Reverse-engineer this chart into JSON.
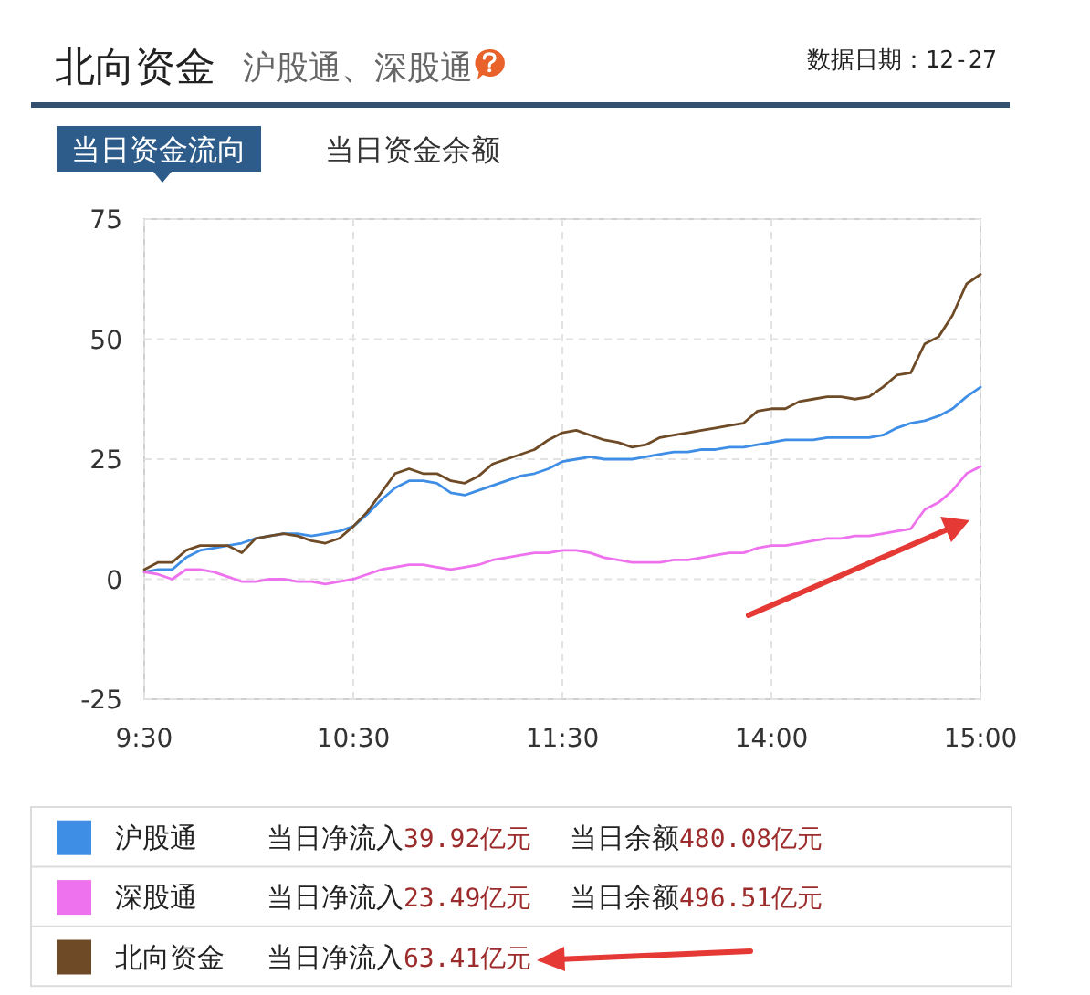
{
  "chart_data": {
    "type": "line",
    "title": "北向资金",
    "subtitle": "沪股通、深股通",
    "annotations": [
      "数据日期：12-27",
      "当日资金流向",
      "当日资金余额",
      "当日净流入39.92亿元",
      "当日余额480.08亿元",
      "当日净流入23.49亿元",
      "当日余额496.51亿元",
      "当日净流入63.41亿元"
    ],
    "categories": [
      "9:30",
      null,
      null,
      null,
      null,
      null,
      null,
      null,
      null,
      null,
      null,
      null,
      null,
      null,
      null,
      "10:30",
      null,
      null,
      null,
      null,
      null,
      null,
      null,
      null,
      null,
      null,
      null,
      null,
      null,
      null,
      "11:30",
      null,
      null,
      null,
      null,
      null,
      null,
      null,
      null,
      null,
      null,
      null,
      null,
      null,
      null,
      "14:00",
      null,
      null,
      null,
      null,
      null,
      null,
      null,
      null,
      null,
      null,
      null,
      null,
      null,
      null,
      "15:00"
    ],
    "ylim": [
      -25,
      75
    ],
    "yticks": [
      -25,
      0,
      25,
      50,
      75
    ],
    "grid": true,
    "legend": "bottom",
    "series": [
      {
        "name": "沪股通",
        "color": "#3f8ee6",
        "values": [
          1.5,
          2,
          2,
          4.5,
          6,
          6.5,
          7,
          7.5,
          8.5,
          9,
          9.5,
          9.5,
          9,
          9.5,
          10,
          11,
          13.5,
          16.5,
          19,
          20.5,
          20.5,
          20,
          18,
          17.5,
          18.5,
          19.5,
          20.5,
          21.5,
          22,
          23,
          24.5,
          25,
          25.5,
          25,
          25,
          25,
          25.5,
          26,
          26.5,
          26.5,
          27,
          27,
          27.5,
          27.5,
          28,
          28.5,
          29,
          29,
          29,
          29.5,
          29.5,
          29.5,
          29.5,
          30,
          31.5,
          32.5,
          33,
          34,
          35.5,
          38,
          40
        ]
      },
      {
        "name": "深股通",
        "color": "#ee72ee",
        "values": [
          1.5,
          1,
          0,
          2,
          2,
          1.5,
          0.5,
          -0.5,
          -0.5,
          0,
          0,
          -0.5,
          -0.5,
          -1,
          -0.5,
          0,
          1,
          2,
          2.5,
          3,
          3,
          2.5,
          2,
          2.5,
          3,
          4,
          4.5,
          5,
          5.5,
          5.5,
          6,
          6,
          5.5,
          4.5,
          4,
          3.5,
          3.5,
          3.5,
          4,
          4,
          4.5,
          5,
          5.5,
          5.5,
          6.5,
          7,
          7,
          7.5,
          8,
          8.5,
          8.5,
          9,
          9,
          9.5,
          10,
          10.5,
          14.5,
          16,
          18.5,
          22,
          23.5
        ]
      },
      {
        "name": "北向资金",
        "color": "#6e4b26",
        "values": [
          2,
          3.5,
          3.5,
          6,
          7,
          7,
          7,
          5.5,
          8.5,
          9,
          9.5,
          9,
          8,
          7.5,
          8.5,
          11,
          14,
          18,
          22,
          23,
          22,
          22,
          20.5,
          20,
          21.5,
          24,
          25,
          26,
          27,
          29,
          30.5,
          31,
          30,
          29,
          28.5,
          27.5,
          28,
          29.5,
          30,
          30.5,
          31,
          31.5,
          32,
          32.5,
          35,
          35.5,
          35.5,
          37,
          37.5,
          38,
          38,
          37.5,
          38,
          40,
          42.5,
          43,
          49,
          50.5,
          55,
          61.5,
          63.5
        ]
      }
    ]
  }
}
